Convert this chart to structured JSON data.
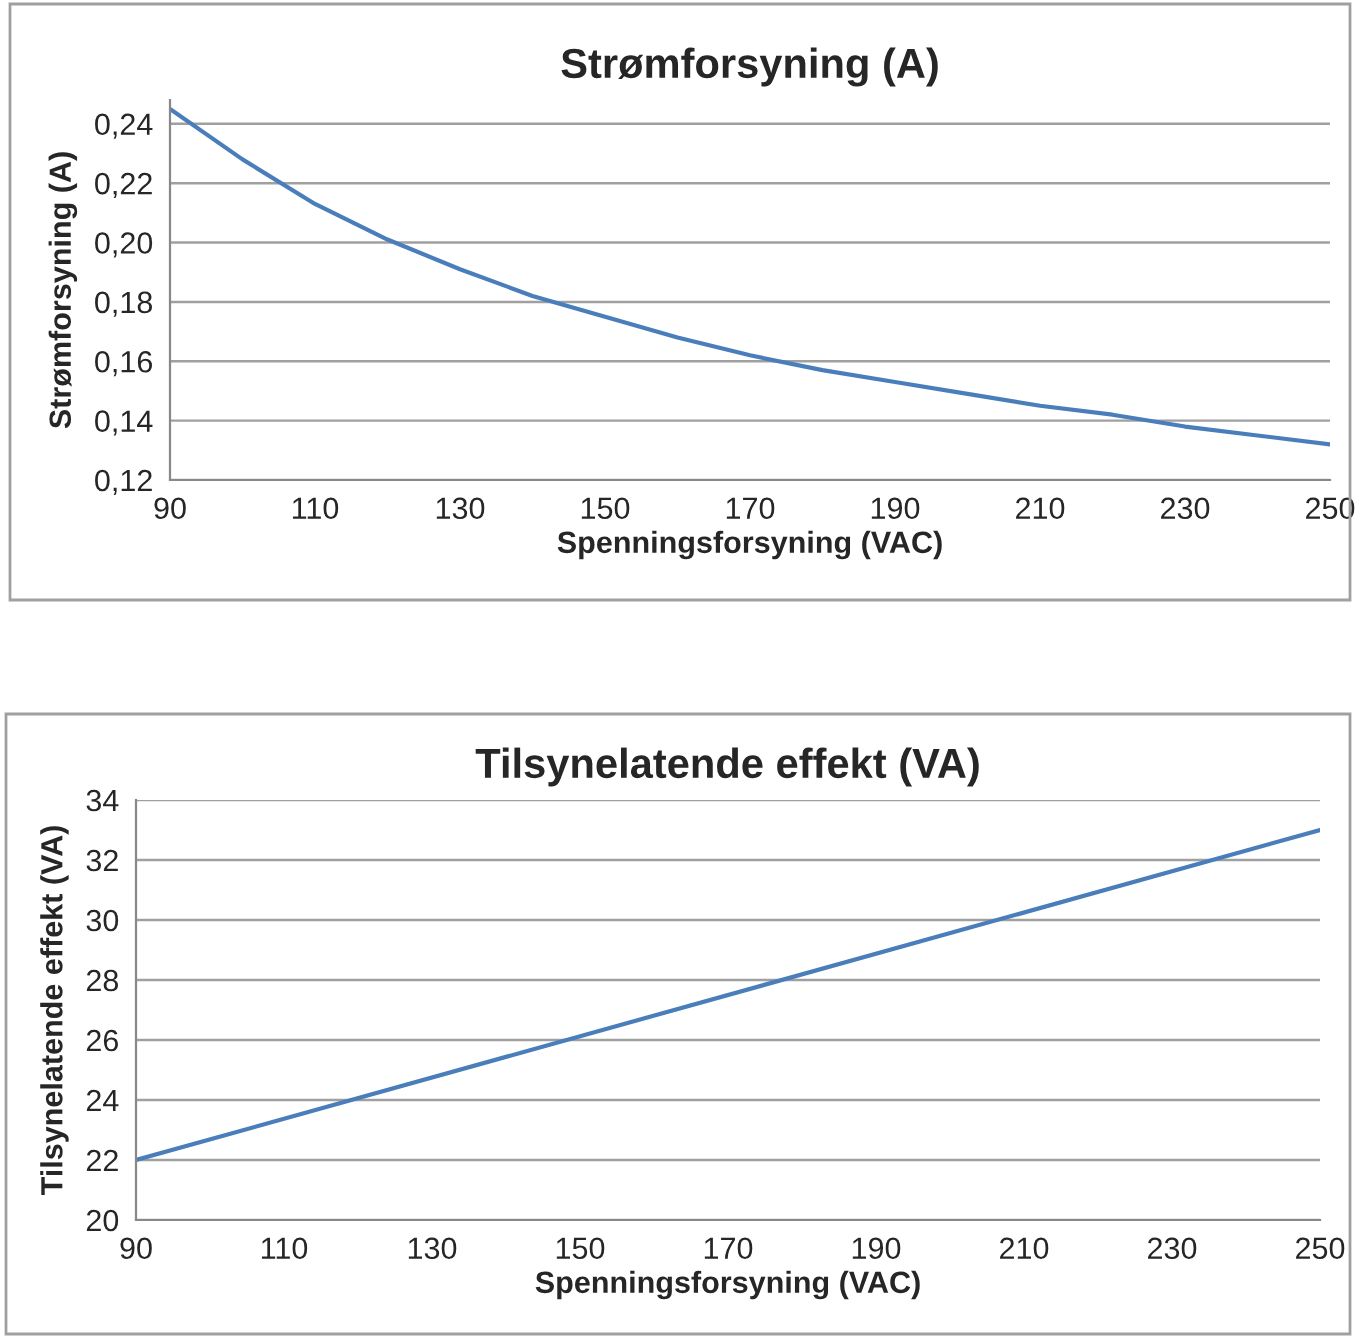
{
  "chart_data": [
    {
      "type": "line",
      "title": "Strømforsyning (A)",
      "xlabel": "Spenningsforsyning (VAC)",
      "ylabel": "Strømforsyning (A)",
      "x": [
        90,
        100,
        110,
        120,
        130,
        140,
        150,
        160,
        170,
        180,
        190,
        200,
        210,
        220,
        230,
        240,
        250
      ],
      "series": [
        {
          "color": "#4a7ebb",
          "values": [
            0.245,
            0.228,
            0.213,
            0.201,
            0.191,
            0.182,
            0.175,
            0.168,
            0.162,
            0.157,
            0.153,
            0.149,
            0.145,
            0.142,
            0.138,
            0.135,
            0.132
          ]
        }
      ],
      "xlim": [
        90,
        250
      ],
      "xticks": [
        90,
        110,
        130,
        150,
        170,
        190,
        210,
        230,
        250
      ],
      "ylim": [
        0.12,
        0.248
      ],
      "yticks": [
        {
          "value": 0.12,
          "label": "0,12"
        },
        {
          "value": 0.14,
          "label": "0,14"
        },
        {
          "value": 0.16,
          "label": "0,16"
        },
        {
          "value": 0.18,
          "label": "0,18"
        },
        {
          "value": 0.2,
          "label": "0,20"
        },
        {
          "value": 0.22,
          "label": "0,22"
        },
        {
          "value": 0.24,
          "label": "0,24"
        }
      ],
      "grid": "y",
      "legend": false
    },
    {
      "type": "line",
      "title": "Tilsynelatende effekt (VA)",
      "xlabel": "Spenningsforsyning (VAC)",
      "ylabel": "Tilsynelatende effekt (VA)",
      "x": [
        90,
        250
      ],
      "series": [
        {
          "color": "#4a7ebb",
          "values": [
            22,
            33
          ]
        }
      ],
      "xlim": [
        90,
        250
      ],
      "xticks": [
        90,
        110,
        130,
        150,
        170,
        190,
        210,
        230,
        250
      ],
      "ylim": [
        20,
        34
      ],
      "yticks": [
        20,
        22,
        24,
        26,
        28,
        30,
        32,
        34
      ],
      "grid": "y",
      "legend": false
    }
  ]
}
